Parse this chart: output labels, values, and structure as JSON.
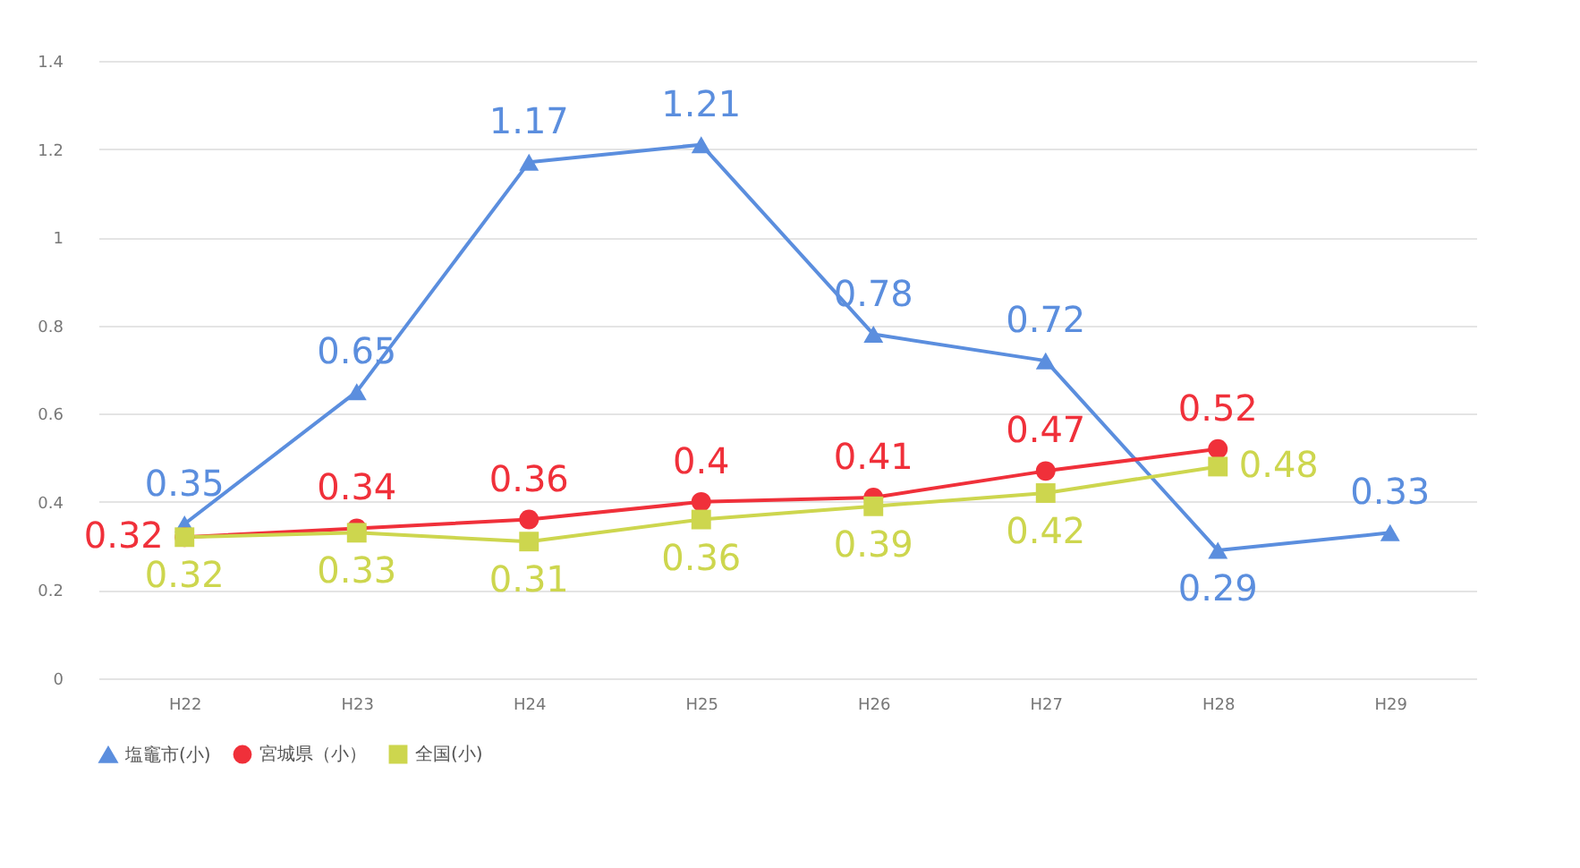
{
  "chart_data": {
    "type": "line",
    "categories": [
      "H22",
      "H23",
      "H24",
      "H25",
      "H26",
      "H27",
      "H28",
      "H29"
    ],
    "series": [
      {
        "name": "塩竈市(小)",
        "color": "#5b8ede",
        "marker": "triangle",
        "values": [
          0.35,
          0.65,
          1.17,
          1.21,
          0.78,
          0.72,
          0.29,
          0.33
        ]
      },
      {
        "name": "宮城県（小）",
        "color": "#f0303a",
        "marker": "circle",
        "values": [
          0.32,
          0.34,
          0.36,
          0.4,
          0.41,
          0.47,
          0.52,
          null
        ]
      },
      {
        "name": "全国(小)",
        "color": "#cdd64e",
        "marker": "square",
        "values": [
          0.32,
          0.33,
          0.31,
          0.36,
          0.39,
          0.42,
          0.48,
          null
        ]
      }
    ],
    "ylim": [
      0,
      1.4
    ],
    "yticks": [
      0,
      0.2,
      0.4,
      0.6,
      0.8,
      1,
      1.2,
      1.4
    ],
    "grid": "y",
    "legend": "bottom",
    "data_labels": true,
    "line_style": "solid"
  }
}
